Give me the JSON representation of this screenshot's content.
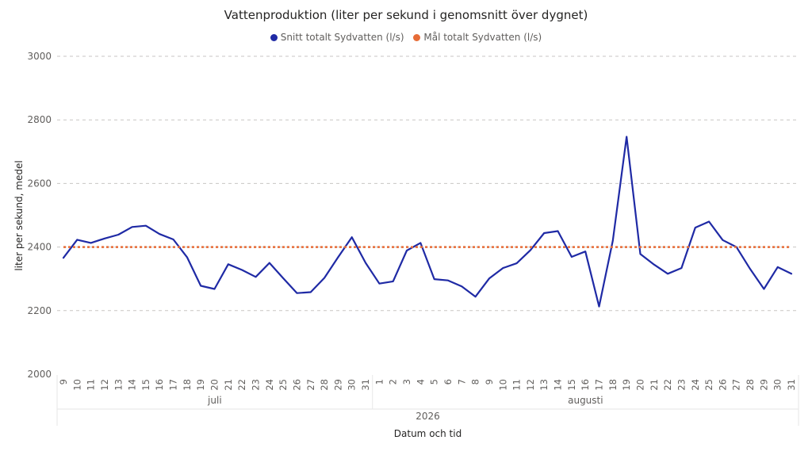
{
  "chart_data": {
    "type": "line",
    "title": "Vattenproduktion (liter per sekund i genomsnitt över dygnet)",
    "xlabel": "Datum och tid",
    "ylabel": "liter per sekund, medel",
    "ylim": [
      2000,
      3000
    ],
    "yticks": [
      "2000",
      "2200",
      "2400",
      "2600",
      "2800",
      "3000"
    ],
    "grid": true,
    "legend_position": "top-center",
    "year_label": "2026",
    "months": [
      {
        "name": "juli",
        "days": [
          "9",
          "10",
          "11",
          "12",
          "13",
          "14",
          "15",
          "16",
          "17",
          "18",
          "19",
          "20",
          "21",
          "22",
          "23",
          "24",
          "25",
          "26",
          "27",
          "28",
          "29",
          "30",
          "31"
        ]
      },
      {
        "name": "augusti",
        "days": [
          "1",
          "2",
          "3",
          "4",
          "5",
          "6",
          "7",
          "8",
          "9",
          "10",
          "11",
          "12",
          "13",
          "14",
          "15",
          "16",
          "17",
          "18",
          "19",
          "20",
          "21",
          "22",
          "23",
          "24",
          "25",
          "26",
          "27",
          "28",
          "29",
          "30",
          "31"
        ]
      }
    ],
    "series": [
      {
        "name": "Snitt totalt Sydvatten (l/s)",
        "color": "#1f2aa5",
        "style": "solid",
        "values": [
          2366,
          2423,
          2413,
          2427,
          2439,
          2463,
          2467,
          2441,
          2424,
          2368,
          2278,
          2268,
          2346,
          2328,
          2306,
          2350,
          2302,
          2255,
          2258,
          2303,
          2368,
          2431,
          2350,
          2285,
          2292,
          2389,
          2413,
          2299,
          2295,
          2276,
          2244,
          2301,
          2334,
          2349,
          2390,
          2444,
          2450,
          2369,
          2386,
          2213,
          2420,
          2747,
          2378,
          2345,
          2316,
          2334,
          2461,
          2480,
          2422,
          2400,
          2331,
          2268,
          2337,
          2316
        ]
      },
      {
        "name": "Mål totalt Sydvatten (l/s)",
        "color": "#e66c37",
        "style": "dotted",
        "values": [
          2400,
          2400,
          2400,
          2400,
          2400,
          2400,
          2400,
          2400,
          2400,
          2400,
          2400,
          2400,
          2400,
          2400,
          2400,
          2400,
          2400,
          2400,
          2400,
          2400,
          2400,
          2400,
          2400,
          2400,
          2400,
          2400,
          2400,
          2400,
          2400,
          2400,
          2400,
          2400,
          2400,
          2400,
          2400,
          2400,
          2400,
          2400,
          2400,
          2400,
          2400,
          2400,
          2400,
          2400,
          2400,
          2400,
          2400,
          2400,
          2400,
          2400,
          2400,
          2400,
          2400,
          2400
        ]
      }
    ]
  }
}
